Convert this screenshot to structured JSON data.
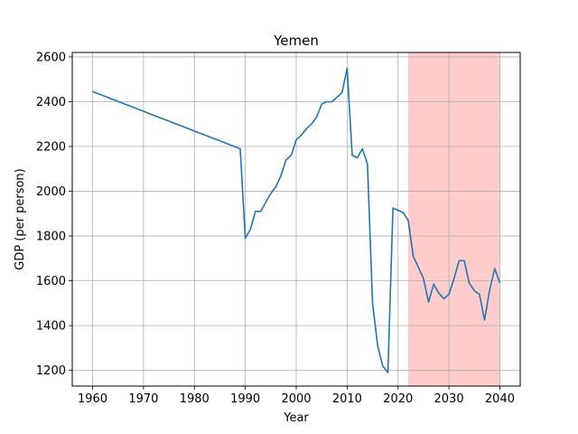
{
  "chart_data": {
    "type": "line",
    "title": "Yemen",
    "xlabel": "Year",
    "ylabel": "GDP (per person)",
    "xlim": [
      1956,
      2044
    ],
    "ylim": [
      1130,
      2620
    ],
    "x_ticks": [
      1960,
      1970,
      1980,
      1990,
      2000,
      2010,
      2020,
      2030,
      2040
    ],
    "y_ticks": [
      1200,
      1400,
      1600,
      1800,
      2000,
      2200,
      2400,
      2600
    ],
    "grid": true,
    "shaded_region": {
      "x_start": 2022,
      "x_end": 2040,
      "color": "#ffcccc"
    },
    "line_color": "#1f77b4",
    "series": [
      {
        "x": [
          1960,
          1989,
          1990,
          1991,
          1992,
          1993,
          1994,
          1995,
          1996,
          1997,
          1998,
          1999,
          2000,
          2001,
          2002,
          2003,
          2004,
          2005,
          2006,
          2007,
          2008,
          2009,
          2010,
          2011,
          2012,
          2013,
          2014,
          2015,
          2016,
          2017,
          2018,
          2019,
          2020,
          2021,
          2022,
          2023,
          2024,
          2025,
          2026,
          2027,
          2028,
          2029,
          2030,
          2031,
          2032,
          2033,
          2034,
          2035,
          2036,
          2037,
          2038,
          2039,
          2040
        ],
        "values": [
          2445,
          2190,
          1790,
          1830,
          1910,
          1910,
          1950,
          1990,
          2020,
          2070,
          2140,
          2160,
          2230,
          2250,
          2280,
          2300,
          2330,
          2390,
          2400,
          2400,
          2420,
          2440,
          2550,
          2160,
          2150,
          2190,
          2120,
          1500,
          1310,
          1220,
          1190,
          1925,
          1915,
          1905,
          1870,
          1710,
          1660,
          1610,
          1505,
          1585,
          1545,
          1520,
          1540,
          1610,
          1690,
          1690,
          1590,
          1555,
          1540,
          1425,
          1560,
          1655,
          1590
        ]
      }
    ]
  }
}
